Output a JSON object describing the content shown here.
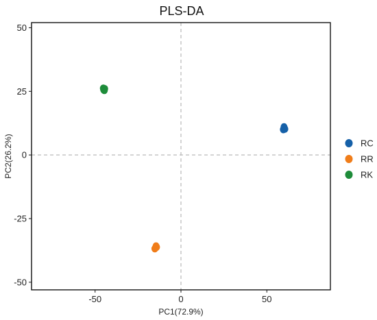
{
  "chart_data": {
    "type": "scatter",
    "title": "PLS-DA",
    "xlabel": "PC1(72.9%)",
    "ylabel": "PC2(26.2%)",
    "xlim": [
      -87,
      87
    ],
    "ylim": [
      -53,
      52
    ],
    "x_ticks": [
      -50,
      0,
      50
    ],
    "y_ticks": [
      50,
      25,
      0,
      -25,
      -50
    ],
    "x_tick_labels": [
      "-50",
      "0",
      "50"
    ],
    "y_tick_labels": [
      "50",
      "25",
      "0",
      "-25",
      "-50"
    ],
    "grid": false,
    "reference_lines": [
      {
        "axis": "x",
        "value": 0,
        "style": "dashed"
      },
      {
        "axis": "y",
        "value": 0,
        "style": "dashed"
      }
    ],
    "legend_position": "right",
    "series": [
      {
        "name": "RC",
        "color": "#1560a8",
        "points": [
          {
            "x": 60,
            "y": 11
          },
          {
            "x": 60.5,
            "y": 10.2
          },
          {
            "x": 59.6,
            "y": 10
          },
          {
            "x": 60.2,
            "y": 10.6
          }
        ]
      },
      {
        "name": "RR",
        "color": "#f07d1a",
        "points": [
          {
            "x": -14.5,
            "y": -35.8
          },
          {
            "x": -15.2,
            "y": -36.8
          },
          {
            "x": -14.8,
            "y": -36.4
          },
          {
            "x": -14.2,
            "y": -36.2
          }
        ]
      },
      {
        "name": "RK",
        "color": "#1e8c3a",
        "points": [
          {
            "x": -45.2,
            "y": 26.2
          },
          {
            "x": -44.6,
            "y": 25.4
          },
          {
            "x": -45,
            "y": 25.6
          },
          {
            "x": -44.4,
            "y": 26
          }
        ]
      }
    ]
  }
}
